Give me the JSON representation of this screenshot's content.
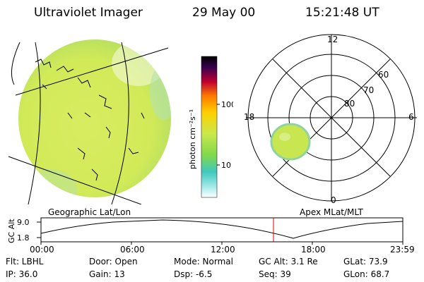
{
  "header": {
    "title": "Ultraviolet Imager",
    "date": "29 May 00",
    "time": "15:21:48 UT"
  },
  "colorbar": {
    "unit_label": "photon cm⁻²s⁻¹",
    "ticks": [
      "100",
      "10"
    ]
  },
  "panels": {
    "left_label": "Geographic Lat/Lon",
    "right_label": "Apex MLat/MLT"
  },
  "polar": {
    "mlt_labels": {
      "top": "12",
      "left": "18",
      "right": "6",
      "bottom": "0"
    },
    "mlat_labels": [
      "60",
      "70",
      "80"
    ]
  },
  "altitude_plot": {
    "axis_label": "GC Alt",
    "y_ticks": [
      "9.0",
      "1.8"
    ],
    "time_ticks": [
      "00:00",
      "06:00",
      "12:00",
      "18:00",
      "23:59"
    ],
    "marker_color": "#dd0000"
  },
  "footer": {
    "filter": "Flt: LBHL",
    "ip": "IP: 36.0",
    "door": "Door: Open",
    "gain": "Gain: 13",
    "mode": "Mode: Normal",
    "dsp": "Dsp:   -6.5",
    "gc_alt": "GC Alt: 3.1 Re",
    "seq": "Seq: 39",
    "glat": "GLat:  73.9",
    "glon": "GLon:  68.7"
  }
}
